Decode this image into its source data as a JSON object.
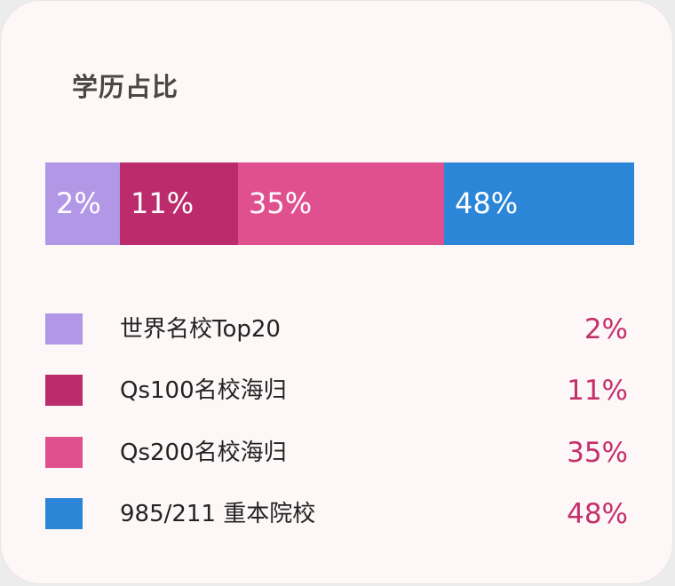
{
  "title": "学历占比",
  "chart_data": {
    "type": "bar",
    "subtype": "stacked-100-percent",
    "title": "学历占比",
    "categories": [
      "世界名校Top20",
      "Qs100名校海归",
      "Qs200名校海归",
      "985/211 重本院校"
    ],
    "values": [
      2,
      11,
      35,
      48
    ],
    "value_labels": [
      "2%",
      "11%",
      "35%",
      "48%"
    ],
    "unit": "%",
    "colors": [
      "#b197e6",
      "#bc2b6c",
      "#e0508f",
      "#2b86d8"
    ],
    "legend_value_color": "#c4306c",
    "legend_placement": "bottom"
  }
}
